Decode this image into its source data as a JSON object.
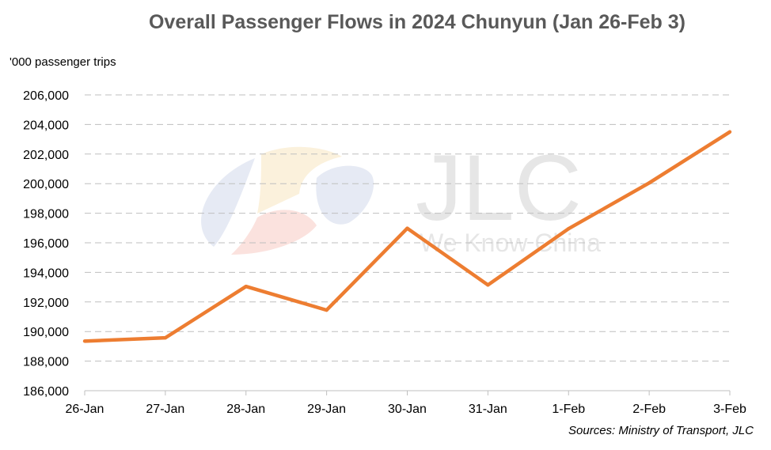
{
  "source_note": "Sources: Ministry of Transport, JLC",
  "watermark": {
    "brand": "JLC",
    "tagline": "We Know China"
  },
  "chart_data": {
    "type": "line",
    "title": "Overall Passenger Flows in 2024 Chunyun (Jan 26-Feb 3)",
    "ylabel": "'000 passenger trips",
    "xlabel": "",
    "categories": [
      "26-Jan",
      "27-Jan",
      "28-Jan",
      "29-Jan",
      "30-Jan",
      "31-Jan",
      "1-Feb",
      "2-Feb",
      "3-Feb"
    ],
    "series": [
      {
        "values": [
          189350,
          189580,
          193050,
          191450,
          196980,
          193150,
          196950,
          200050,
          203500
        ],
        "color": "#ED7D31"
      }
    ],
    "ylim": [
      186000,
      206000
    ],
    "yticks": [
      186000,
      188000,
      190000,
      192000,
      194000,
      196000,
      198000,
      200000,
      202000,
      204000,
      206000
    ],
    "grid": true,
    "legend": false
  }
}
